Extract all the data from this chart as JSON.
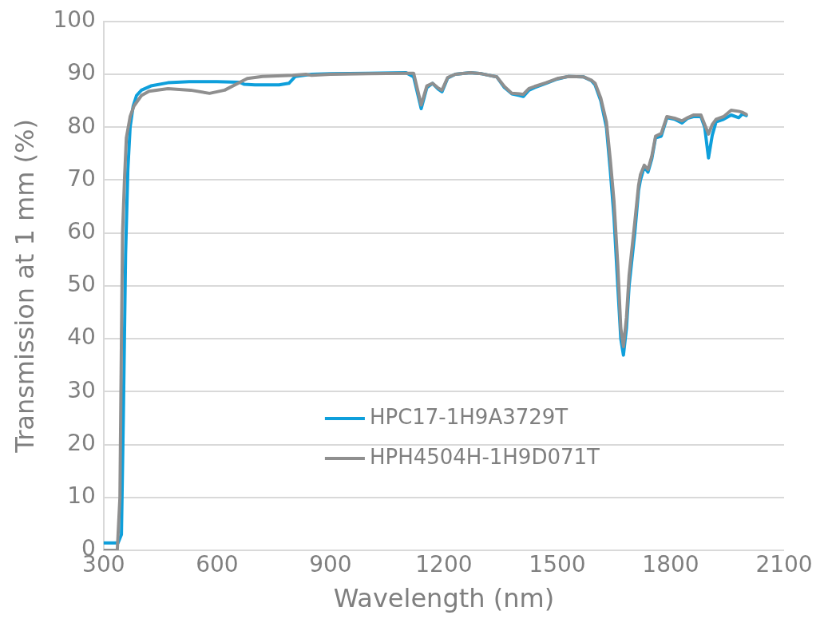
{
  "chart_data": {
    "type": "line",
    "xlabel": "Wavelength (nm)",
    "ylabel": "Transmission at 1 mm (%)",
    "xlim": [
      300,
      2100
    ],
    "xticks": [
      300,
      600,
      900,
      1200,
      1500,
      1800,
      2100
    ],
    "ylim": [
      0,
      100
    ],
    "yticks": [
      0,
      10,
      20,
      30,
      40,
      50,
      60,
      70,
      80,
      90,
      100
    ],
    "grid": "y",
    "legend": "bottom",
    "marker": "none",
    "line_style": "solid",
    "series": [
      {
        "name": "HPC17-1H9A3729T",
        "color": "#0e9fdb",
        "x": [
          300,
          338,
          347,
          352,
          358,
          364,
          370,
          378,
          387,
          400,
          425,
          470,
          526,
          600,
          660,
          672,
          700,
          764,
          790,
          807,
          850,
          900,
          1000,
          1100,
          1120,
          1140,
          1155,
          1170,
          1185,
          1195,
          1210,
          1230,
          1270,
          1300,
          1340,
          1360,
          1380,
          1400,
          1410,
          1425,
          1440,
          1470,
          1500,
          1530,
          1570,
          1590,
          1600,
          1615,
          1630,
          1640,
          1650,
          1660,
          1668,
          1675,
          1683,
          1690,
          1705,
          1715,
          1720,
          1730,
          1740,
          1750,
          1760,
          1775,
          1790,
          1810,
          1830,
          1845,
          1860,
          1880,
          1890,
          1900,
          1910,
          1920,
          1940,
          1960,
          1980,
          1990,
          2000
        ],
        "values": [
          1.4,
          1.4,
          3,
          25,
          56,
          72,
          80,
          84,
          86,
          87,
          87.8,
          88.4,
          88.6,
          88.6,
          88.5,
          88.1,
          88,
          88,
          88.3,
          89.6,
          90,
          90.1,
          90.2,
          90.3,
          89.5,
          83.5,
          87.5,
          88.3,
          87.2,
          86.7,
          89.3,
          90,
          90.3,
          90.1,
          89.5,
          87.5,
          86.3,
          86,
          85.8,
          87,
          87.5,
          88.3,
          89.1,
          89.6,
          89.5,
          88.8,
          88,
          85,
          80,
          72,
          63,
          50,
          40,
          36.9,
          42,
          50,
          60,
          68,
          70,
          72.5,
          71.5,
          74,
          78,
          78.3,
          81.8,
          81.5,
          80.8,
          81.7,
          82,
          82,
          80,
          74.2,
          78.5,
          81,
          81.5,
          82.3,
          81.8,
          82.5,
          82.2
        ]
      },
      {
        "name": "HPH4504H-1H9D071T",
        "color": "#8f8f8f",
        "x": [
          300,
          336,
          343,
          347,
          350,
          355,
          360,
          370,
          380,
          400,
          420,
          470,
          530,
          580,
          620,
          680,
          720,
          800,
          835,
          850,
          900,
          1000,
          1100,
          1120,
          1140,
          1155,
          1170,
          1185,
          1195,
          1210,
          1230,
          1270,
          1300,
          1340,
          1360,
          1380,
          1400,
          1410,
          1425,
          1440,
          1470,
          1500,
          1530,
          1570,
          1590,
          1600,
          1615,
          1630,
          1640,
          1650,
          1660,
          1668,
          1675,
          1683,
          1690,
          1705,
          1715,
          1720,
          1730,
          1740,
          1750,
          1760,
          1775,
          1790,
          1810,
          1830,
          1845,
          1860,
          1880,
          1890,
          1900,
          1910,
          1920,
          1940,
          1960,
          1980,
          1990,
          2000
        ],
        "values": [
          0,
          0,
          10,
          40,
          60,
          70,
          78,
          82,
          84,
          86,
          86.8,
          87.3,
          87,
          86.4,
          87,
          89.2,
          89.6,
          89.8,
          90,
          89.8,
          90,
          90.1,
          90.2,
          90.2,
          84.2,
          87.8,
          88.3,
          87.4,
          87,
          89.4,
          90,
          90.3,
          90.1,
          89.5,
          87.7,
          86.4,
          86.3,
          86.2,
          87.3,
          87.7,
          88.4,
          89.2,
          89.6,
          89.5,
          88.9,
          88.3,
          85.5,
          81,
          74,
          66,
          54,
          42,
          38.5,
          44,
          52,
          62,
          69,
          71,
          72.8,
          72,
          74.5,
          78.3,
          78.8,
          82,
          81.7,
          81.2,
          81.8,
          82.3,
          82.3,
          80.5,
          78.7,
          80.5,
          81.5,
          82,
          83.2,
          83,
          82.8,
          82.4
        ]
      }
    ]
  }
}
